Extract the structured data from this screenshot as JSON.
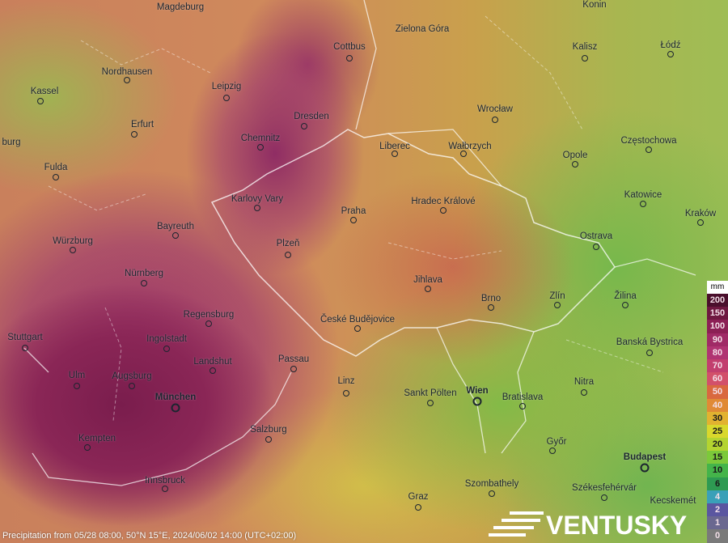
{
  "layer": "Precipitation",
  "caption": "Precipitation from 05/28 08:00, 50°N 15°E, 2024/06/02 14:00 (UTC+02:00)",
  "brand": "VENTUSKY",
  "legend": {
    "unit": "mm",
    "items": [
      {
        "label": "200",
        "color": "#4a0f2c"
      },
      {
        "label": "150",
        "color": "#6e1840"
      },
      {
        "label": "100",
        "color": "#8c1f55"
      },
      {
        "label": "90",
        "color": "#a02a66"
      },
      {
        "label": "80",
        "color": "#b03472"
      },
      {
        "label": "70",
        "color": "#c23f6e"
      },
      {
        "label": "60",
        "color": "#d2506a"
      },
      {
        "label": "50",
        "color": "#d9683f"
      },
      {
        "label": "40",
        "color": "#e08a35"
      },
      {
        "label": "30",
        "color": "#e2b230"
      },
      {
        "label": "25",
        "color": "#d9d82c"
      },
      {
        "label": "20",
        "color": "#b4d430"
      },
      {
        "label": "15",
        "color": "#7cc93a"
      },
      {
        "label": "10",
        "color": "#44b44a"
      },
      {
        "label": "6",
        "color": "#2e9a52"
      },
      {
        "label": "4",
        "color": "#3aa0b8"
      },
      {
        "label": "2",
        "color": "#5a56a0"
      },
      {
        "label": "1",
        "color": "#6a6890"
      },
      {
        "label": "0",
        "color": "#7a7a7a"
      }
    ]
  },
  "cities": [
    "Magdeburg",
    "Konin",
    "Zielona Góra",
    "Cottbus",
    "Kalisz",
    "Łódź",
    "Kassel",
    "Nordhausen",
    "Leipzig",
    "Dresden",
    "Erfurt",
    "Wrocław",
    "Chemnitz",
    "Liberec",
    "Wałbrzych",
    "Opole",
    "Częstochowa",
    "Fulda",
    "burg",
    "Karlovy Vary",
    "Hradec Králové",
    "Praha",
    "Katowice",
    "Kraków",
    "Bayreuth",
    "Würzburg",
    "Plzeň",
    "Ostrava",
    "Nürnberg",
    "Jihlava",
    "Brno",
    "Zlín",
    "Žilina",
    "Regensburg",
    "České Budějovice",
    "Stuttgart",
    "Ingolstadt",
    "Banská Bystrica",
    "Landshut",
    "Passau",
    "Ulm",
    "Augsburg",
    "Nitra",
    "Linz",
    "Sankt Pölten",
    "Wien",
    "Bratislava",
    "München",
    "Salzburg",
    "Kempten",
    "Győr",
    "Budapest",
    "Innsbruck",
    "Szombathely",
    "Székesfehérvár",
    "Graz",
    "Kecskemét"
  ]
}
